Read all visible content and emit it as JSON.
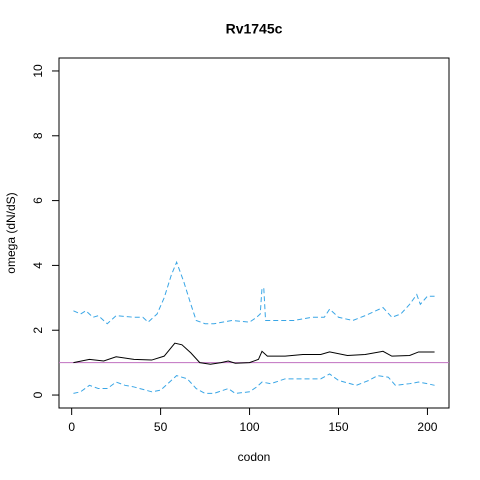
{
  "chart_data": {
    "type": "line",
    "title": "Rv1745c",
    "x_label": "codon",
    "y_label": "omega (dN/dS)",
    "xlim": [
      -7.12,
      212.12
    ],
    "xticks": [
      0,
      50,
      100,
      150,
      200
    ],
    "ylim": [
      -0.4,
      10.4
    ],
    "yticks": [
      0,
      2,
      4,
      6,
      8,
      10
    ],
    "hline": {
      "value": 1,
      "color": "#c070c0"
    },
    "series": [
      {
        "color": "#3aa6e6",
        "dash": true,
        "x": [
          1,
          5,
          8,
          12,
          15,
          20,
          25,
          35,
          40,
          43,
          48,
          52,
          56,
          59,
          63,
          67,
          70,
          75,
          80,
          90,
          100,
          104,
          106,
          107,
          108,
          109,
          115,
          125,
          135,
          142,
          145,
          150,
          158,
          165,
          175,
          180,
          185,
          190,
          194,
          196,
          200,
          204
        ],
        "values": [
          2.6,
          2.5,
          2.6,
          2.4,
          2.45,
          2.2,
          2.45,
          2.4,
          2.4,
          2.25,
          2.5,
          3.0,
          3.7,
          4.1,
          3.5,
          2.8,
          2.3,
          2.2,
          2.2,
          2.3,
          2.25,
          2.4,
          2.5,
          3.3,
          3.3,
          2.3,
          2.3,
          2.3,
          2.4,
          2.4,
          2.65,
          2.4,
          2.3,
          2.45,
          2.7,
          2.4,
          2.5,
          2.8,
          3.1,
          2.8,
          3.05,
          3.05
        ]
      },
      {
        "color": "#000000",
        "dash": false,
        "x": [
          1,
          10,
          18,
          25,
          35,
          45,
          52,
          58,
          62,
          67,
          72,
          78,
          84,
          88,
          92,
          100,
          105,
          107,
          110,
          120,
          130,
          140,
          145,
          155,
          165,
          175,
          180,
          190,
          195,
          204
        ],
        "values": [
          1.0,
          1.1,
          1.05,
          1.18,
          1.1,
          1.08,
          1.2,
          1.6,
          1.55,
          1.3,
          1.0,
          0.95,
          1.0,
          1.05,
          0.98,
          1.0,
          1.1,
          1.35,
          1.2,
          1.2,
          1.25,
          1.25,
          1.33,
          1.22,
          1.25,
          1.35,
          1.2,
          1.22,
          1.33,
          1.33
        ]
      },
      {
        "color": "#3aa6e6",
        "dash": true,
        "x": [
          1,
          5,
          10,
          15,
          20,
          25,
          30,
          35,
          45,
          50,
          55,
          59,
          65,
          70,
          75,
          80,
          88,
          92,
          100,
          104,
          107,
          112,
          120,
          130,
          140,
          145,
          150,
          160,
          167,
          172,
          178,
          182,
          190,
          195,
          200,
          204
        ],
        "values": [
          0.05,
          0.1,
          0.3,
          0.2,
          0.2,
          0.4,
          0.3,
          0.25,
          0.1,
          0.15,
          0.4,
          0.6,
          0.5,
          0.2,
          0.05,
          0.05,
          0.2,
          0.05,
          0.1,
          0.25,
          0.4,
          0.35,
          0.5,
          0.5,
          0.5,
          0.65,
          0.45,
          0.3,
          0.45,
          0.6,
          0.55,
          0.3,
          0.35,
          0.4,
          0.35,
          0.3
        ]
      }
    ]
  }
}
